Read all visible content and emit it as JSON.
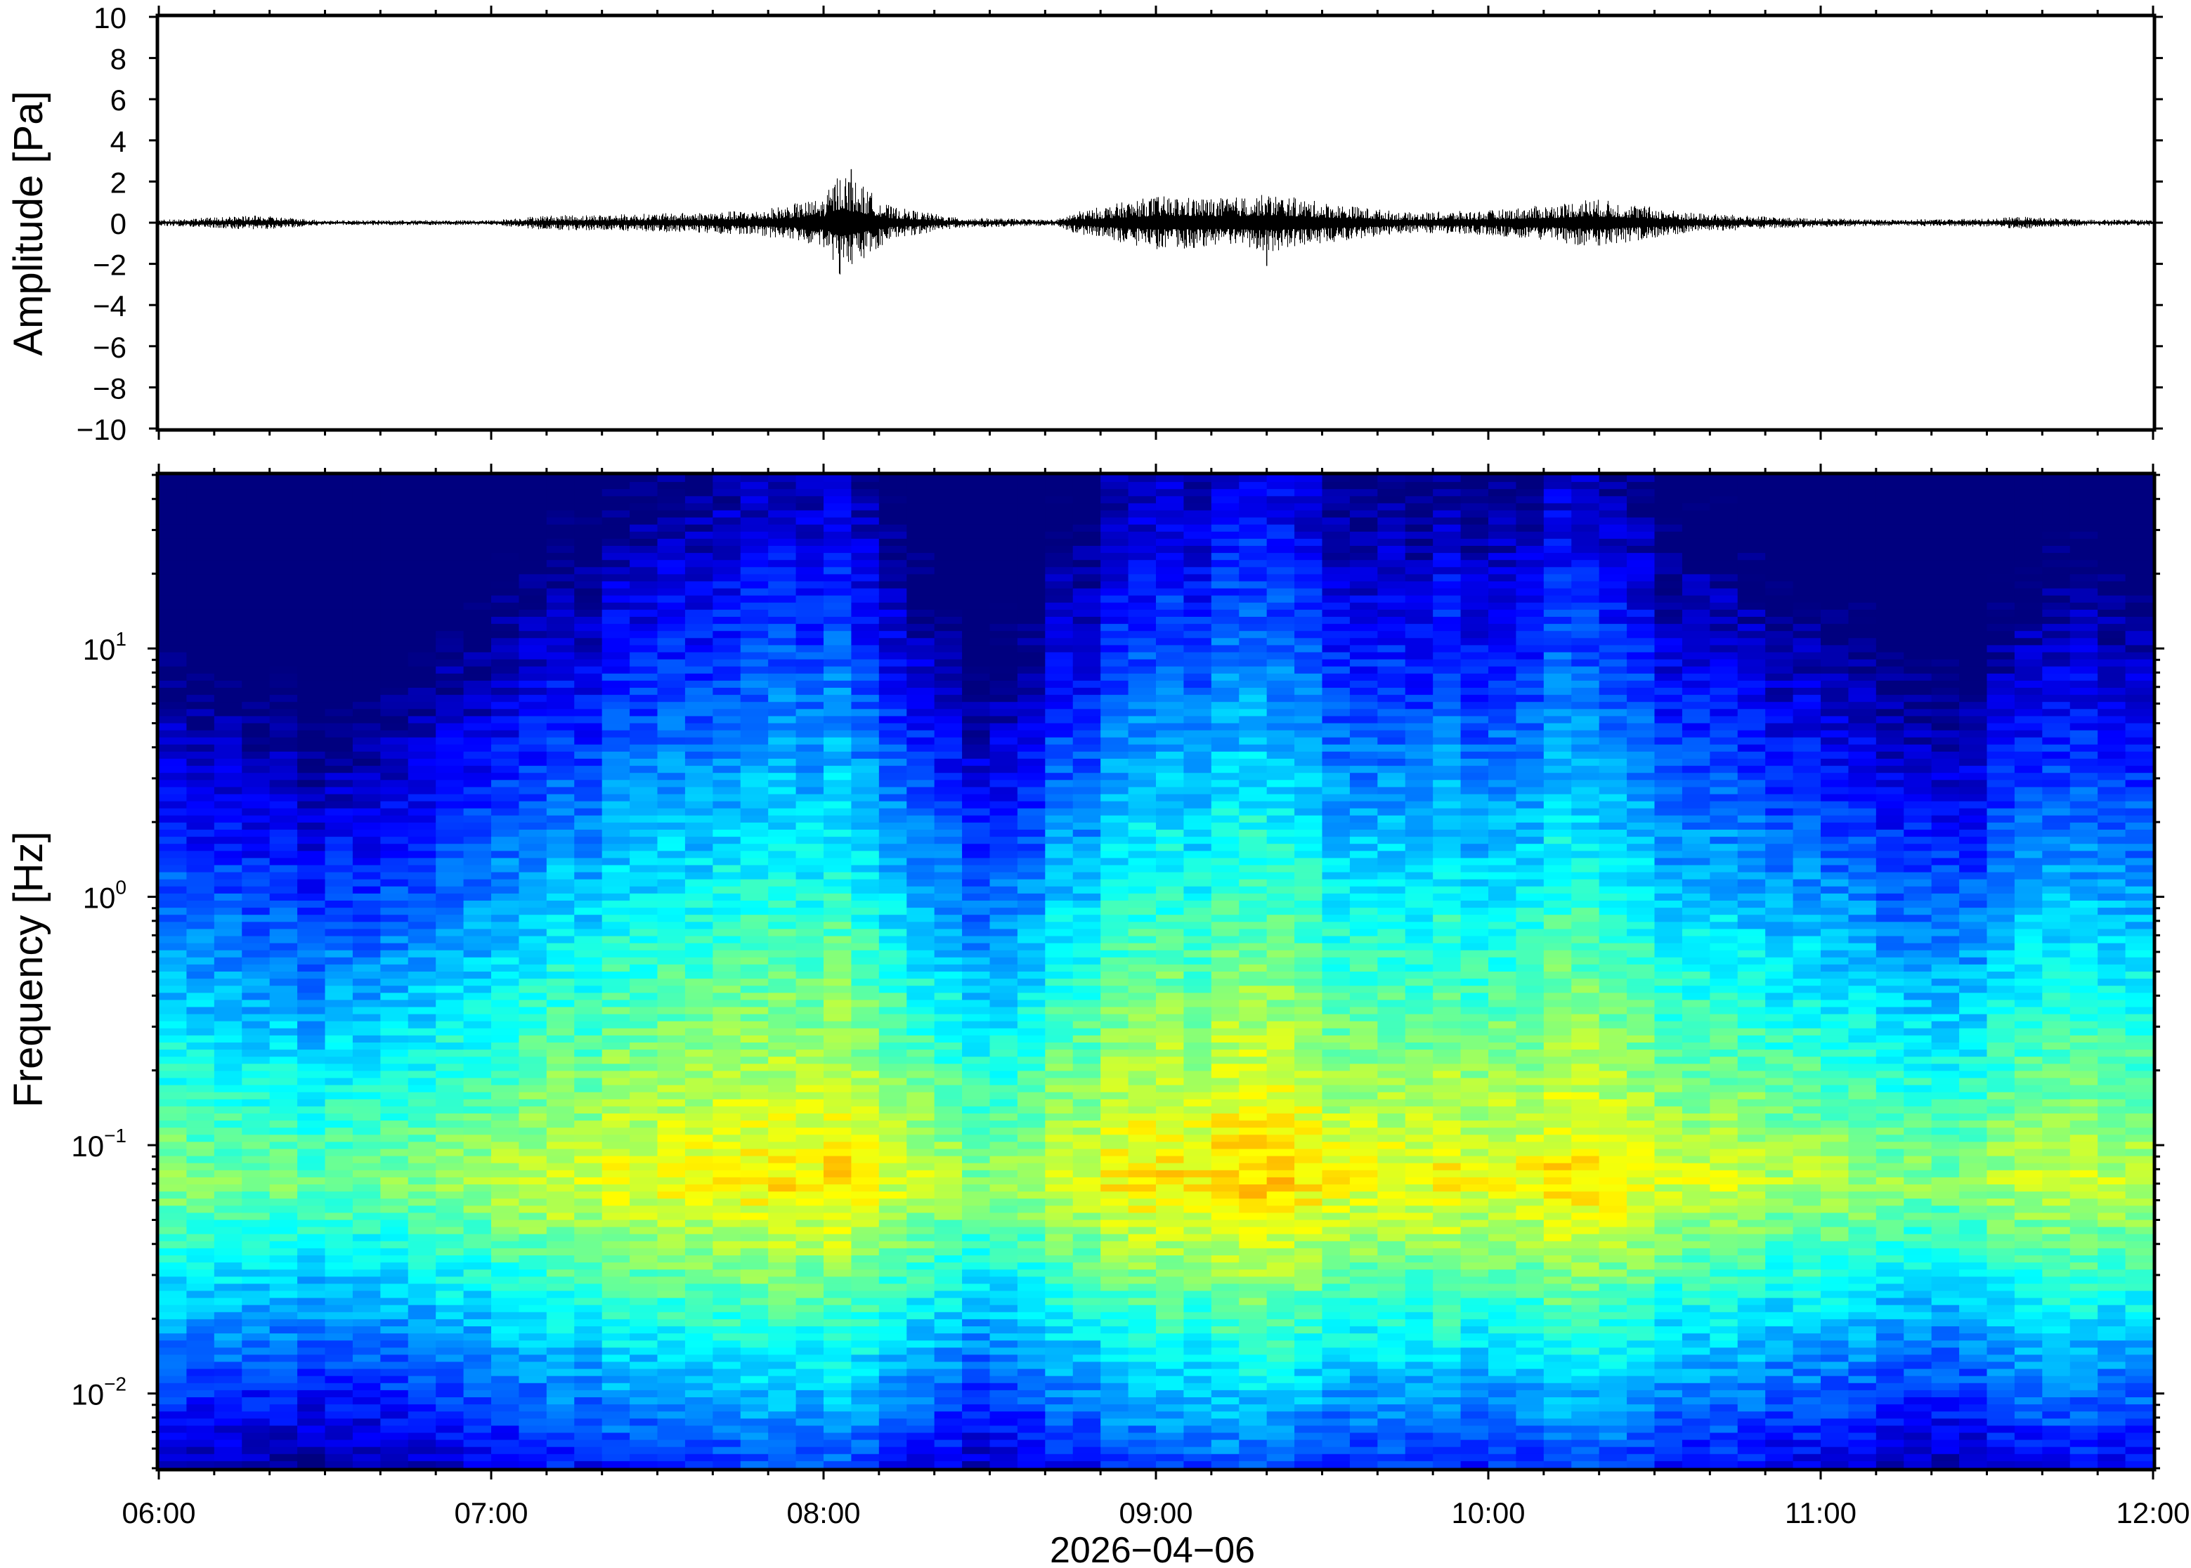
{
  "chart_data": [
    {
      "type": "line",
      "panel": "waveform",
      "ylabel": "Amplitude [Pa]",
      "ylim": [
        -10,
        10
      ],
      "yticks": [
        10,
        8,
        6,
        4,
        2,
        0,
        -2,
        -4,
        -6,
        -8,
        -10
      ],
      "ytick_labels": [
        "10",
        "8",
        "6",
        "4",
        "2",
        "0",
        "−2",
        "−4",
        "−6",
        "−8",
        "−10"
      ],
      "grid": false,
      "x_time_range": [
        "06:00",
        "12:00"
      ],
      "series": [
        {
          "color": "#000000",
          "envelope_time_hours": [
            6.0,
            6.3,
            6.5,
            7.0,
            7.15,
            7.5,
            7.8,
            8.0,
            8.05,
            8.2,
            8.4,
            8.7,
            8.75,
            8.9,
            9.0,
            9.2,
            9.35,
            9.5,
            9.75,
            10.0,
            10.2,
            10.3,
            10.4,
            10.6,
            10.9,
            11.2,
            11.5,
            11.6,
            11.8,
            12.0
          ],
          "envelope_amplitude_pa": [
            0.15,
            0.35,
            0.12,
            0.12,
            0.35,
            0.45,
            0.6,
            1.2,
            2.6,
            0.8,
            0.25,
            0.15,
            0.5,
            1.0,
            1.3,
            1.2,
            1.4,
            1.0,
            0.5,
            0.6,
            0.9,
            1.2,
            1.0,
            0.5,
            0.25,
            0.15,
            0.2,
            0.3,
            0.15,
            0.15
          ],
          "peak_positive": {
            "time": "08:05",
            "value": 2.6
          },
          "peak_negative": {
            "time": "09:20",
            "value": -2.1
          }
        }
      ]
    },
    {
      "type": "heatmap",
      "panel": "spectrogram",
      "ylabel": "Frequency [Hz]",
      "yscale": "log",
      "ylim": [
        0.005,
        50
      ],
      "yticks": [
        0.01,
        0.1,
        1,
        10
      ],
      "ytick_labels": [
        {
          "base": "10",
          "exp": "−2"
        },
        {
          "base": "10",
          "exp": "−1"
        },
        {
          "base": "10",
          "exp": "0"
        },
        {
          "base": "10",
          "exp": "1"
        }
      ],
      "xlabel": "2026−04−06",
      "xticks": [
        "06:00",
        "07:00",
        "08:00",
        "09:00",
        "10:00",
        "11:00",
        "12:00"
      ],
      "colormap": "jet",
      "relative_energy_by_time": {
        "time_hours": [
          6.0,
          6.5,
          7.0,
          7.15,
          7.5,
          8.0,
          8.2,
          8.5,
          8.7,
          9.0,
          9.35,
          9.6,
          10.0,
          10.3,
          10.6,
          11.0,
          11.4,
          11.6,
          12.0
        ],
        "level": [
          0.25,
          0.12,
          0.3,
          0.45,
          0.55,
          0.7,
          0.55,
          0.22,
          0.5,
          0.65,
          0.75,
          0.6,
          0.6,
          0.7,
          0.45,
          0.4,
          0.2,
          0.45,
          0.4
        ]
      }
    }
  ],
  "colors": {
    "colormap_stops": [
      "#00007f",
      "#0000ff",
      "#007fff",
      "#00ffff",
      "#7fff7f",
      "#ffff00",
      "#ff7f00",
      "#ff0000"
    ]
  }
}
